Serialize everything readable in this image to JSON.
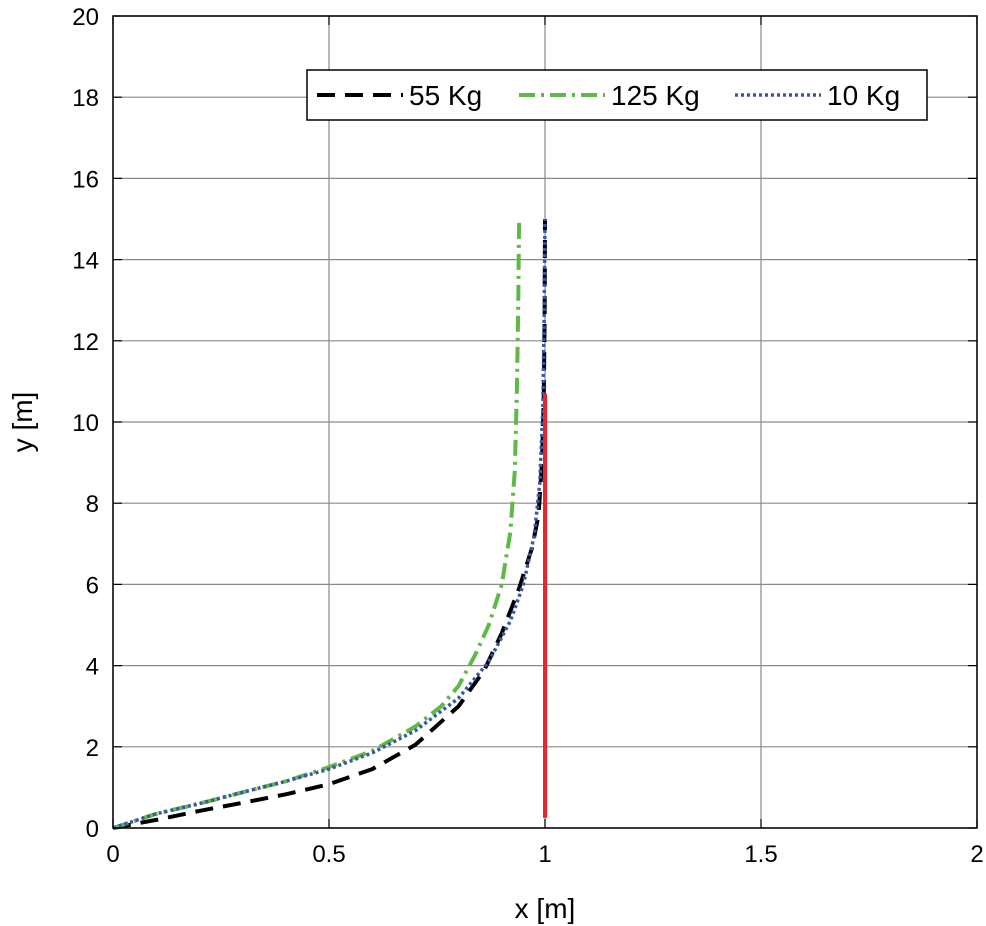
{
  "chart_data": {
    "type": "line",
    "title": "",
    "xlabel": "x [m]",
    "ylabel": "y [m]",
    "xlim": [
      0,
      2
    ],
    "ylim": [
      0,
      20
    ],
    "xticks": [
      0,
      0.5,
      1,
      1.5,
      2
    ],
    "xtick_labels": [
      "0",
      "0.5",
      "1",
      "1.5",
      "2"
    ],
    "yticks": [
      0,
      2,
      4,
      6,
      8,
      10,
      12,
      14,
      16,
      18,
      20
    ],
    "ytick_labels": [
      "0",
      "2",
      "4",
      "6",
      "8",
      "10",
      "12",
      "14",
      "16",
      "18",
      "20"
    ],
    "grid": true,
    "legend_position": "top-right",
    "series": [
      {
        "name": "55 Kg",
        "color": "#000000",
        "style": "dashed",
        "x": [
          0,
          0.1,
          0.2,
          0.3,
          0.4,
          0.5,
          0.6,
          0.7,
          0.8,
          0.86,
          0.9,
          0.94,
          0.97,
          0.985,
          0.993,
          0.997,
          0.999,
          1.0
        ],
        "y": [
          0,
          0.2,
          0.42,
          0.62,
          0.83,
          1.08,
          1.45,
          2.05,
          3.0,
          3.9,
          4.8,
          5.9,
          6.9,
          7.7,
          9.0,
          10.5,
          12.5,
          15.0
        ]
      },
      {
        "name": "125 Kg",
        "color": "#5fb946",
        "style": "dashdot",
        "x": [
          0,
          0.1,
          0.2,
          0.3,
          0.4,
          0.5,
          0.6,
          0.7,
          0.76,
          0.8,
          0.84,
          0.87,
          0.9,
          0.92,
          0.93,
          0.935,
          0.938,
          0.94
        ],
        "y": [
          0,
          0.35,
          0.6,
          0.88,
          1.15,
          1.5,
          1.9,
          2.5,
          3.0,
          3.5,
          4.3,
          5.0,
          6.0,
          7.3,
          8.8,
          10.8,
          12.8,
          15.0
        ]
      },
      {
        "name": "10 Kg",
        "color": "#3a56a6",
        "style": "dotted",
        "x": [
          0,
          0.1,
          0.2,
          0.3,
          0.4,
          0.5,
          0.6,
          0.7,
          0.8,
          0.87,
          0.92,
          0.95,
          0.975,
          0.988,
          0.995,
          0.998,
          1.0
        ],
        "y": [
          0,
          0.35,
          0.6,
          0.88,
          1.15,
          1.45,
          1.85,
          2.4,
          3.2,
          4.1,
          5.1,
          6.0,
          7.2,
          8.5,
          10.3,
          12.5,
          15.0
        ]
      },
      {
        "name": "",
        "color": "#e8262e",
        "style": "solid",
        "x": [
          1.0,
          1.0
        ],
        "y": [
          0.25,
          10.7
        ]
      }
    ]
  }
}
